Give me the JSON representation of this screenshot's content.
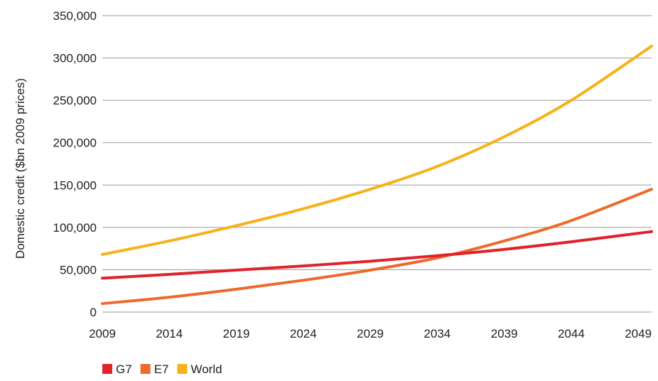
{
  "chart_data": {
    "type": "line",
    "title": "",
    "xlabel": "",
    "ylabel": "Domestic credit ($bn 2009 prices)",
    "x_ticks": [
      "2009",
      "2014",
      "2019",
      "2024",
      "2029",
      "2034",
      "2039",
      "2044",
      "2049"
    ],
    "y_ticks": [
      "0",
      "50,000",
      "100,000",
      "150,000",
      "200,000",
      "250,000",
      "300,000",
      "350,000"
    ],
    "xlim": [
      2009,
      2050
    ],
    "ylim": [
      0,
      350000
    ],
    "grid": true,
    "legend_position": "bottom-left",
    "x": [
      2009,
      2014,
      2019,
      2024,
      2029,
      2034,
      2039,
      2044,
      2050
    ],
    "series": [
      {
        "name": "G7",
        "color": "#e0222b",
        "values": [
          40000,
          44500,
          49500,
          54500,
          60000,
          66500,
          74000,
          83000,
          95000
        ]
      },
      {
        "name": "E7",
        "color": "#ed6a2c",
        "values": [
          10000,
          17500,
          27000,
          37500,
          49500,
          64000,
          84000,
          108000,
          145000
        ]
      },
      {
        "name": "World",
        "color": "#f5b21a",
        "values": [
          68000,
          84000,
          102000,
          122000,
          145000,
          172000,
          207000,
          250000,
          314000
        ]
      }
    ]
  }
}
